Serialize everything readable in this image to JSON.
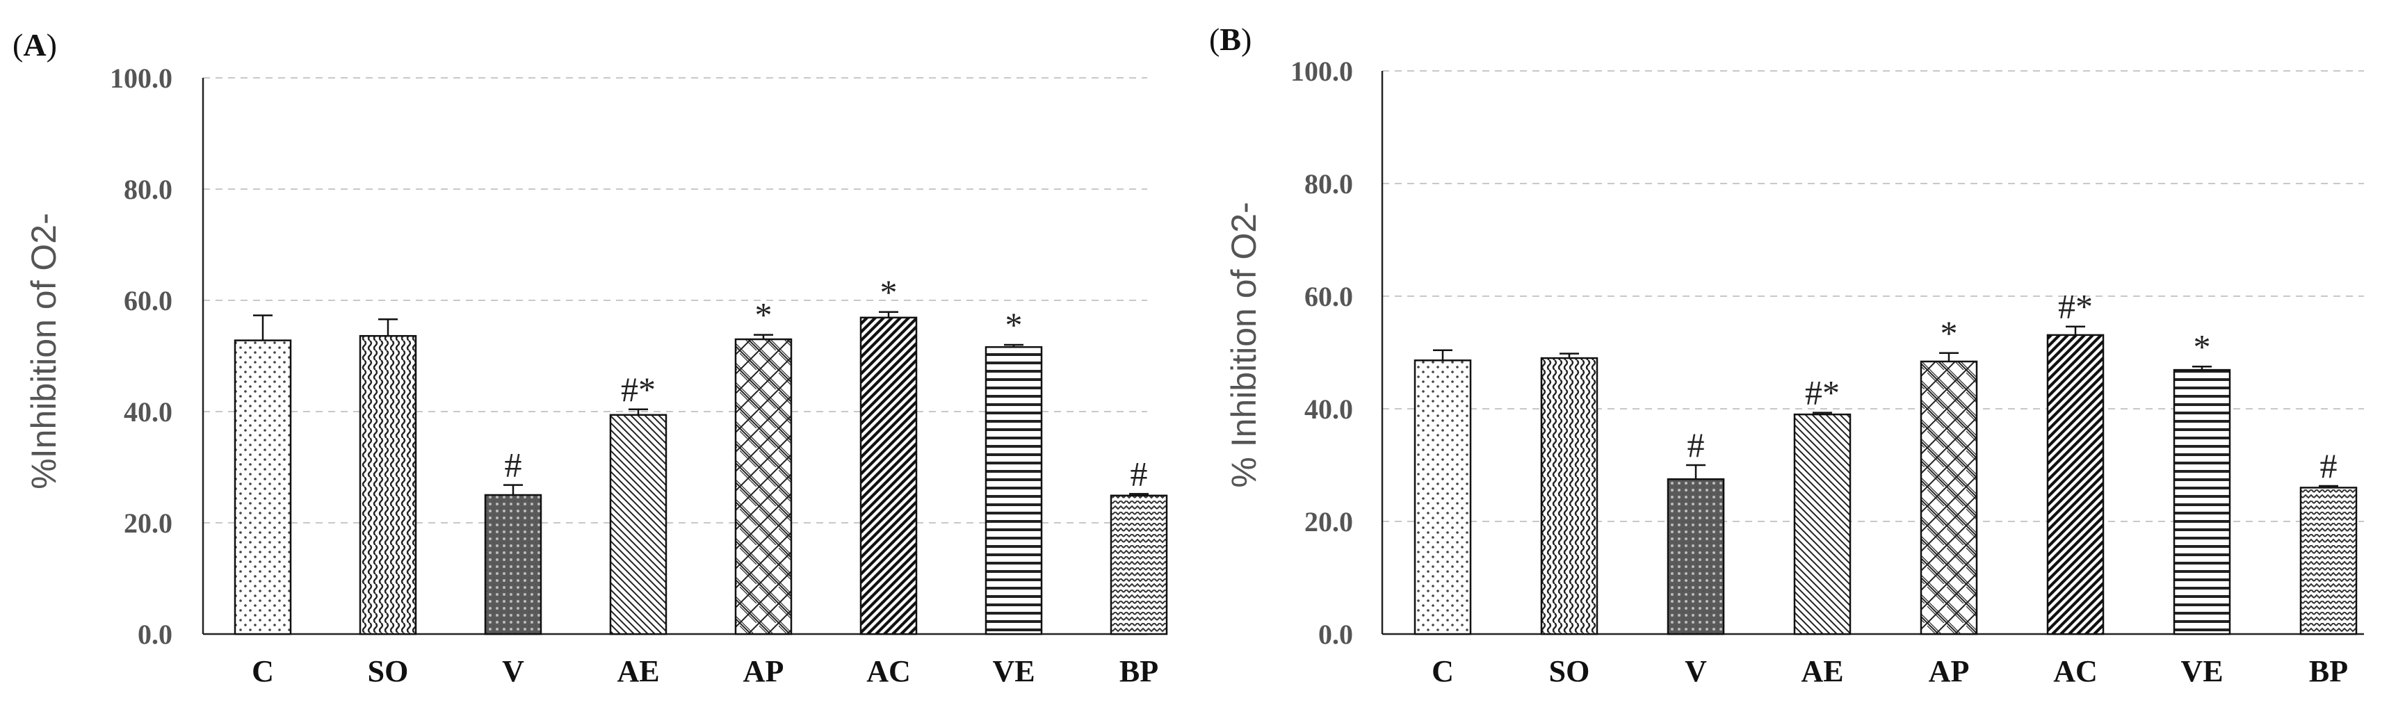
{
  "chart_data": [
    {
      "type": "bar",
      "panel": "A",
      "panel_label": {
        "open": "(",
        "letter": "A",
        "close": ")"
      },
      "ylabel": "%Inhibition of O2-",
      "xlabel": "",
      "ylim": [
        0,
        100
      ],
      "yticks": [
        "0.0",
        "20.0",
        "40.0",
        "60.0",
        "80.0",
        "100.0"
      ],
      "grid": true,
      "categories": [
        "C",
        "SO",
        "V",
        "AE",
        "AP",
        "AC",
        "VE",
        "BP"
      ],
      "values": [
        52.8,
        53.6,
        25.0,
        39.4,
        53.0,
        56.9,
        51.6,
        24.9
      ],
      "errors": [
        4.5,
        3.0,
        1.8,
        1.0,
        0.8,
        1.0,
        0.4,
        0.3
      ],
      "patterns": [
        "dots",
        "waves",
        "dark-grid",
        "diag-left",
        "lattice",
        "diag-right-dense",
        "horizontal",
        "zigzag"
      ],
      "annotations": [
        "",
        "",
        "#",
        "#*",
        "*",
        "*",
        "*",
        "#"
      ]
    },
    {
      "type": "bar",
      "panel": "B",
      "panel_label": {
        "open": "(",
        "letter": "B",
        "close": ")"
      },
      "ylabel": "% Inhibition of O2-",
      "xlabel": "",
      "ylim": [
        0,
        100
      ],
      "yticks": [
        "0.0",
        "20.0",
        "40.0",
        "60.0",
        "80.0",
        "100.0"
      ],
      "grid": true,
      "categories": [
        "C",
        "SO",
        "V",
        "AE",
        "AP",
        "AC",
        "VE",
        "BP"
      ],
      "values": [
        48.6,
        49.0,
        27.5,
        39.0,
        48.4,
        53.1,
        46.9,
        26.0
      ],
      "errors": [
        1.8,
        0.8,
        2.5,
        0.3,
        1.5,
        1.5,
        0.6,
        0.3
      ],
      "patterns": [
        "dots",
        "waves",
        "dark-grid",
        "diag-left",
        "lattice",
        "diag-right-dense",
        "horizontal",
        "zigzag"
      ],
      "annotations": [
        "",
        "",
        "#",
        "#*",
        "*",
        "#*",
        "*",
        "#"
      ]
    }
  ]
}
